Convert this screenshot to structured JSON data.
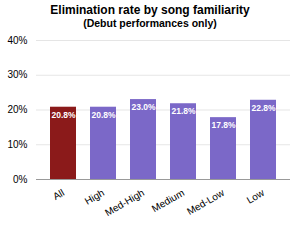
{
  "chart_data": {
    "type": "bar",
    "title": "Elimination rate by song familiarity",
    "subtitle": "(Debut performances only)",
    "categories": [
      "All",
      "High",
      "Med-High",
      "Medium",
      "Med-Low",
      "Low"
    ],
    "values": [
      0.208,
      0.208,
      0.23,
      0.218,
      0.178,
      0.228
    ],
    "value_labels": [
      "20.8%",
      "20.8%",
      "23.0%",
      "21.8%",
      "17.8%",
      "22.8%"
    ],
    "colors": [
      "#8B1A1A",
      "#7B68C8",
      "#7B68C8",
      "#7B68C8",
      "#7B68C8",
      "#7B68C8"
    ],
    "ylim": [
      0,
      0.4
    ],
    "yticks": [
      {
        "value": 0.0,
        "label": "0%"
      },
      {
        "value": 0.1,
        "label": "10%"
      },
      {
        "value": 0.2,
        "label": "20%"
      },
      {
        "value": 0.3,
        "label": "30%"
      },
      {
        "value": 0.4,
        "label": "40%"
      }
    ],
    "grid": true,
    "data_labels": true
  }
}
